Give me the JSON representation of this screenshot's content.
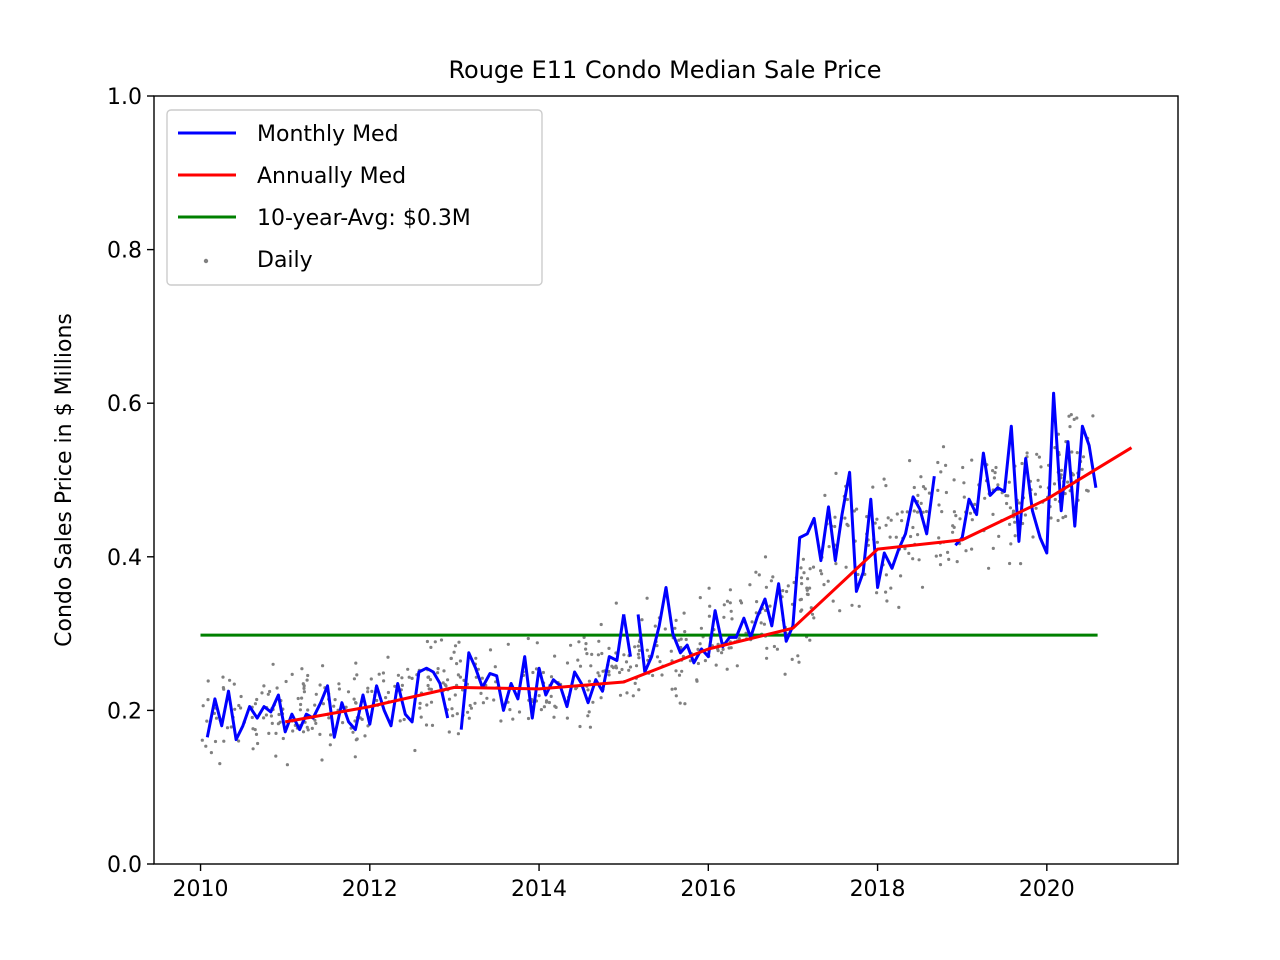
{
  "chart_data": {
    "type": "line",
    "title": "Rouge E11 Condo Median Sale Price",
    "xlabel": "",
    "ylabel": "Condo Sales Price in $ Millions",
    "xlim": [
      2009.45,
      2021.55
    ],
    "ylim": [
      0.0,
      1.0
    ],
    "xticks": [
      2010,
      2012,
      2014,
      2016,
      2018,
      2020
    ],
    "yticks": [
      0.0,
      0.2,
      0.4,
      0.6,
      0.8,
      1.0
    ],
    "ytick_labels": [
      "0.0",
      "0.2",
      "0.4",
      "0.6",
      "0.8",
      "1.0"
    ],
    "legend_position": "top-left",
    "series": [
      {
        "name": "Monthly Med",
        "color": "#0000ff",
        "segments": [
          {
            "x": [
              2010.08,
              2010.17,
              2010.25,
              2010.33,
              2010.42,
              2010.5,
              2010.58,
              2010.67,
              2010.75,
              2010.83,
              2010.92,
              2011.0,
              2011.08,
              2011.17,
              2011.25,
              2011.33,
              2011.42,
              2011.5,
              2011.58,
              2011.67,
              2011.75,
              2011.83,
              2011.92,
              2012.0,
              2012.08,
              2012.17,
              2012.25,
              2012.33,
              2012.42,
              2012.5,
              2012.58,
              2012.67,
              2012.75,
              2012.83,
              2012.92
            ],
            "y": [
              0.165,
              0.215,
              0.18,
              0.225,
              0.162,
              0.18,
              0.205,
              0.19,
              0.205,
              0.198,
              0.22,
              0.172,
              0.195,
              0.175,
              0.195,
              0.19,
              0.21,
              0.232,
              0.165,
              0.21,
              0.185,
              0.175,
              0.22,
              0.182,
              0.232,
              0.2,
              0.18,
              0.235,
              0.195,
              0.185,
              0.25,
              0.255,
              0.25,
              0.235,
              0.19
            ]
          },
          {
            "x": [
              2013.08,
              2013.17,
              2013.25,
              2013.33,
              2013.42,
              2013.5,
              2013.58,
              2013.67,
              2013.75,
              2013.83,
              2013.92,
              2014.0,
              2014.08,
              2014.17,
              2014.25,
              2014.33,
              2014.42,
              2014.5,
              2014.58,
              2014.67,
              2014.75,
              2014.83,
              2014.92,
              2015.0
            ],
            "y": [
              0.175,
              0.275,
              0.255,
              0.23,
              0.248,
              0.245,
              0.2,
              0.235,
              0.215,
              0.27,
              0.19,
              0.255,
              0.22,
              0.24,
              0.232,
              0.205,
              0.25,
              0.235,
              0.21,
              0.24,
              0.225,
              0.27,
              0.265,
              0.325
            ]
          },
          {
            "x": [
              2015.0,
              2015.08
            ],
            "y": [
              0.325,
              0.27
            ]
          },
          {
            "x": [
              2015.17,
              2015.25,
              2015.33,
              2015.42,
              2015.5,
              2015.58,
              2015.67,
              2015.75,
              2015.83,
              2015.92,
              2016.0,
              2016.08,
              2016.17,
              2016.25,
              2016.33,
              2016.42,
              2016.5,
              2016.58,
              2016.67,
              2016.75,
              2016.83,
              2016.92,
              2017.0,
              2017.08,
              2017.17,
              2017.25,
              2017.33,
              2017.42,
              2017.5,
              2017.58,
              2017.67,
              2017.75,
              2017.83,
              2017.92,
              2018.0,
              2018.08,
              2018.17,
              2018.25,
              2018.33,
              2018.42,
              2018.5,
              2018.58,
              2018.67
            ],
            "y": [
              0.325,
              0.25,
              0.27,
              0.31,
              0.36,
              0.3,
              0.275,
              0.285,
              0.262,
              0.28,
              0.27,
              0.33,
              0.283,
              0.295,
              0.295,
              0.32,
              0.295,
              0.322,
              0.345,
              0.31,
              0.365,
              0.29,
              0.31,
              0.425,
              0.43,
              0.45,
              0.395,
              0.465,
              0.395,
              0.455,
              0.51,
              0.355,
              0.38,
              0.475,
              0.36,
              0.405,
              0.385,
              0.41,
              0.43,
              0.478,
              0.462,
              0.43,
              0.505
            ]
          },
          {
            "x": [
              2018.92,
              2019.0,
              2019.08,
              2019.17,
              2019.25,
              2019.33,
              2019.42,
              2019.5,
              2019.58,
              2019.67,
              2019.75,
              2019.83,
              2019.92,
              2020.0,
              2020.08,
              2020.17,
              2020.25,
              2020.33,
              2020.42,
              2020.5,
              2020.58
            ],
            "y": [
              0.415,
              0.425,
              0.475,
              0.455,
              0.535,
              0.48,
              0.49,
              0.485,
              0.57,
              0.42,
              0.528,
              0.46,
              0.425,
              0.405,
              0.613,
              0.46,
              0.55,
              0.44,
              0.57,
              0.545,
              0.49
            ]
          }
        ]
      },
      {
        "name": "Annually Med",
        "color": "#ff0000",
        "x": [
          2011,
          2012,
          2013,
          2014,
          2015,
          2016,
          2017,
          2018,
          2019,
          2020,
          2021
        ],
        "y": [
          0.185,
          0.205,
          0.23,
          0.228,
          0.237,
          0.28,
          0.307,
          0.41,
          0.422,
          0.475,
          0.542
        ]
      },
      {
        "name": "10-year-Avg: $0.3M",
        "color": "#008000",
        "x": [
          2010.0,
          2020.6
        ],
        "y": [
          0.298,
          0.298
        ]
      },
      {
        "name": "Daily",
        "color": "#808080",
        "type": "scatter",
        "trend": {
          "x": [
            2010.0,
            2011.0,
            2012.0,
            2013.0,
            2014.0,
            2014.5,
            2015.0,
            2016.0,
            2017.0,
            2017.5,
            2018.0,
            2019.0,
            2020.0,
            2020.6
          ],
          "y": [
            0.19,
            0.195,
            0.205,
            0.23,
            0.23,
            0.235,
            0.27,
            0.29,
            0.33,
            0.42,
            0.42,
            0.46,
            0.49,
            0.53
          ]
        },
        "spread": 0.055,
        "count": 700
      }
    ]
  }
}
